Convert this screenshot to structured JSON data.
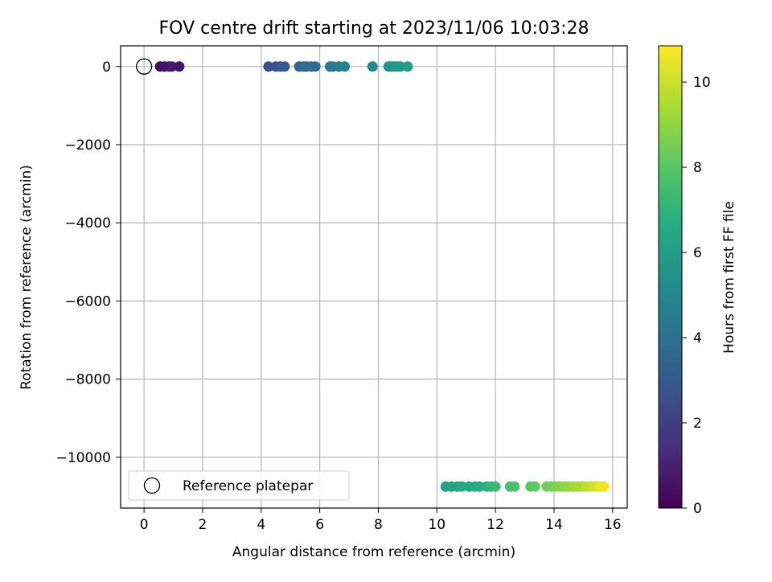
{
  "chart_data": {
    "type": "scatter",
    "title": "FOV centre drift starting at 2023/11/06 10:03:28",
    "xlabel": "Angular distance from reference (arcmin)",
    "ylabel": "Rotation from reference (arcmin)",
    "xlim": [
      -0.8,
      16.5
    ],
    "ylim": [
      -11300,
      530
    ],
    "xticks": [
      0,
      2,
      4,
      6,
      8,
      10,
      12,
      14,
      16
    ],
    "yticks": [
      0,
      -2000,
      -4000,
      -6000,
      -8000,
      -10000
    ],
    "xtick_labels": [
      "0",
      "2",
      "4",
      "6",
      "8",
      "10",
      "12",
      "14",
      "16"
    ],
    "ytick_labels": [
      "0",
      "−2000",
      "−4000",
      "−6000",
      "−8000",
      "−10000"
    ],
    "grid": true,
    "legend": {
      "location": "lower-left",
      "entries": [
        "Reference platepar"
      ]
    },
    "reference_point": {
      "x": 0,
      "y": 0,
      "label": "Reference platepar"
    },
    "colormap": "viridis",
    "colorbar": {
      "label": "Hours from first FF file",
      "range": [
        0,
        10.85
      ],
      "ticks": [
        0,
        2,
        4,
        6,
        8,
        10
      ],
      "tick_labels": [
        "0",
        "2",
        "4",
        "6",
        "8",
        "10"
      ]
    },
    "series": [
      {
        "points": [
          {
            "x": 0.55,
            "y": 0,
            "c": 0.3
          },
          {
            "x": 0.7,
            "y": 0,
            "c": 0.5
          },
          {
            "x": 0.85,
            "y": 0,
            "c": 0.7
          },
          {
            "x": 0.95,
            "y": 0,
            "c": 0.8
          },
          {
            "x": 1.2,
            "y": 0,
            "c": 0.6
          },
          {
            "x": 4.25,
            "y": 0,
            "c": 2.6
          },
          {
            "x": 4.5,
            "y": 0,
            "c": 2.8
          },
          {
            "x": 4.65,
            "y": 0,
            "c": 3.0
          },
          {
            "x": 4.8,
            "y": 0,
            "c": 3.1
          },
          {
            "x": 5.3,
            "y": 0,
            "c": 3.5
          },
          {
            "x": 5.45,
            "y": 0,
            "c": 3.6
          },
          {
            "x": 5.55,
            "y": 0,
            "c": 3.7
          },
          {
            "x": 5.7,
            "y": 0,
            "c": 3.8
          },
          {
            "x": 5.85,
            "y": 0,
            "c": 3.9
          },
          {
            "x": 6.35,
            "y": 0,
            "c": 4.3
          },
          {
            "x": 6.45,
            "y": 0,
            "c": 4.4
          },
          {
            "x": 6.65,
            "y": 0,
            "c": 4.6
          },
          {
            "x": 6.85,
            "y": 0,
            "c": 4.8
          },
          {
            "x": 7.8,
            "y": 0,
            "c": 5.0
          },
          {
            "x": 8.35,
            "y": 0,
            "c": 5.4
          },
          {
            "x": 8.45,
            "y": 0,
            "c": 5.5
          },
          {
            "x": 8.55,
            "y": 0,
            "c": 5.6
          },
          {
            "x": 8.65,
            "y": 0,
            "c": 5.7
          },
          {
            "x": 8.75,
            "y": 0,
            "c": 5.8
          },
          {
            "x": 9.0,
            "y": 0,
            "c": 6.0
          },
          {
            "x": 10.3,
            "y": -10750,
            "c": 6.1
          },
          {
            "x": 10.5,
            "y": -10750,
            "c": 6.2
          },
          {
            "x": 10.7,
            "y": -10750,
            "c": 6.3
          },
          {
            "x": 10.85,
            "y": -10750,
            "c": 6.4
          },
          {
            "x": 11.1,
            "y": -10750,
            "c": 6.5
          },
          {
            "x": 11.3,
            "y": -10750,
            "c": 6.6
          },
          {
            "x": 11.45,
            "y": -10750,
            "c": 6.7
          },
          {
            "x": 11.7,
            "y": -10750,
            "c": 6.9
          },
          {
            "x": 11.85,
            "y": -10750,
            "c": 7.1
          },
          {
            "x": 12.0,
            "y": -10750,
            "c": 7.3
          },
          {
            "x": 12.5,
            "y": -10750,
            "c": 7.6
          },
          {
            "x": 12.65,
            "y": -10750,
            "c": 7.7
          },
          {
            "x": 13.2,
            "y": -10750,
            "c": 8.0
          },
          {
            "x": 13.35,
            "y": -10750,
            "c": 8.1
          },
          {
            "x": 13.75,
            "y": -10750,
            "c": 8.4
          },
          {
            "x": 13.9,
            "y": -10750,
            "c": 8.5
          },
          {
            "x": 14.05,
            "y": -10750,
            "c": 8.6
          },
          {
            "x": 14.2,
            "y": -10750,
            "c": 8.75
          },
          {
            "x": 14.35,
            "y": -10750,
            "c": 8.9
          },
          {
            "x": 14.5,
            "y": -10750,
            "c": 9.05
          },
          {
            "x": 14.65,
            "y": -10750,
            "c": 9.2
          },
          {
            "x": 14.8,
            "y": -10750,
            "c": 9.35
          },
          {
            "x": 14.95,
            "y": -10750,
            "c": 9.5
          },
          {
            "x": 15.1,
            "y": -10750,
            "c": 9.7
          },
          {
            "x": 15.25,
            "y": -10750,
            "c": 9.9
          },
          {
            "x": 15.4,
            "y": -10750,
            "c": 10.1
          },
          {
            "x": 15.5,
            "y": -10750,
            "c": 10.3
          },
          {
            "x": 15.6,
            "y": -10750,
            "c": 10.5
          },
          {
            "x": 15.7,
            "y": -10750,
            "c": 10.7
          }
        ]
      }
    ]
  }
}
